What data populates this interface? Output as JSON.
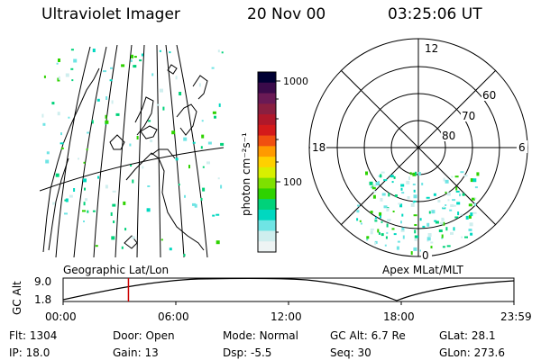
{
  "header": {
    "instrument": "Ultraviolet Imager",
    "date": "20 Nov 00",
    "time": "03:25:06 UT"
  },
  "colorbar": {
    "unit_label": "photon cm⁻²s⁻¹",
    "ticks": [
      "1000",
      "100"
    ],
    "colors": [
      "#000033",
      "#3a0a4a",
      "#6a1a55",
      "#8a1f40",
      "#b0182a",
      "#d41a1a",
      "#f05010",
      "#ff9a00",
      "#ffd000",
      "#d8ef00",
      "#7ee000",
      "#2ed200",
      "#00d27a",
      "#00d8c0",
      "#6fe4e4",
      "#cfeeee",
      "#eef4f4"
    ]
  },
  "polar": {
    "mlt_labels": [
      "12",
      "18",
      "6",
      "0"
    ],
    "lat_labels": [
      "60",
      "70",
      "80"
    ]
  },
  "timeline": {
    "left_label": "Geographic Lat/Lon",
    "right_label": "Apex MLat/MLT",
    "axis_title": "GC Alt",
    "y_ticks": [
      "9.0",
      "1.8"
    ],
    "x_ticks": [
      "00:00",
      "06:00",
      "12:00",
      "18:00",
      "23:59"
    ],
    "current_fraction": 0.1449
  },
  "params": {
    "row1": [
      {
        "label": "Flt:",
        "value": "1304"
      },
      {
        "label": "Door:",
        "value": "Open"
      },
      {
        "label": "Mode:",
        "value": "Normal"
      },
      {
        "label": "GC Alt:",
        "value": "6.7 Re"
      },
      {
        "label": "GLat:",
        "value": "28.1"
      }
    ],
    "row2": [
      {
        "label": "IP:",
        "value": "18.0"
      },
      {
        "label": "Gain:",
        "value": "13"
      },
      {
        "label": "Dsp:",
        "value": "-5.5"
      },
      {
        "label": "Seq:",
        "value": "30"
      },
      {
        "label": "GLon:",
        "value": "273.6"
      }
    ]
  }
}
